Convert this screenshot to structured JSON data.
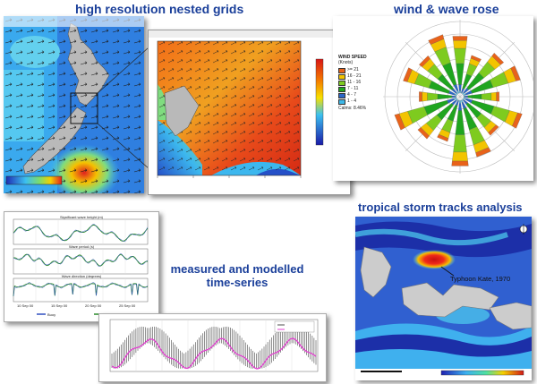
{
  "titles": {
    "grids": "high resolution nested grids",
    "rose": "wind & wave rose",
    "storm": "tropical storm tracks analysis",
    "timeseries_line1": "measured and modelled",
    "timeseries_line2": "time-series"
  },
  "rose_legend": {
    "title": "WIND SPEED",
    "unit": "(Knots)",
    "bins": [
      ">= 21",
      "16 - 21",
      "11 - 16",
      "7 - 11",
      "4 - 7",
      "1 - 4"
    ],
    "calms": "Calms: 8.46%",
    "colors": [
      "#e8621a",
      "#f2c400",
      "#7ecb1f",
      "#1fa51f",
      "#2a66c8",
      "#3db8e8"
    ]
  },
  "storm": {
    "label": "Typhoon Kate, 1970"
  },
  "timeseries": {
    "plot1_title": "Significant wave height (m)",
    "plot2_title": "Wave period (s)",
    "plot3_title": "Wave direction (degrees)",
    "legend": [
      "Buoy",
      "Model"
    ],
    "x_ticks": [
      "10 Sep 00",
      "15 Sep 00",
      "20 Sep 00",
      "25 Sep 00"
    ]
  },
  "palette": {
    "title_blue": "#1a3f9a",
    "ocean_blue": "#3b78d8",
    "land_grey": "#b9b9b9",
    "measured_black": "#222222",
    "modelled_magenta": "#e23fd0"
  }
}
